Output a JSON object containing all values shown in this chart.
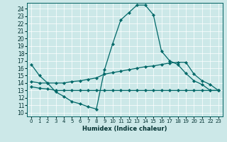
{
  "xlabel": "Humidex (Indice chaleur)",
  "x_ticks": [
    0,
    1,
    2,
    3,
    4,
    5,
    6,
    7,
    8,
    9,
    10,
    11,
    12,
    13,
    14,
    15,
    16,
    17,
    18,
    19,
    20,
    21,
    22,
    23
  ],
  "y_ticks": [
    10,
    11,
    12,
    13,
    14,
    15,
    16,
    17,
    18,
    19,
    20,
    21,
    22,
    23,
    24
  ],
  "xlim": [
    -0.5,
    23.5
  ],
  "ylim": [
    9.5,
    24.8
  ],
  "bg_color": "#cce8e8",
  "line_color": "#006868",
  "line1_x": [
    0,
    1,
    2,
    3,
    4,
    5,
    6,
    7,
    8,
    9,
    10,
    11,
    12,
    13,
    14,
    15,
    16,
    17,
    18,
    19,
    20,
    21,
    22,
    23
  ],
  "line1_y": [
    16.5,
    15.0,
    14.0,
    12.8,
    12.2,
    11.5,
    11.2,
    10.8,
    10.5,
    15.8,
    19.3,
    22.5,
    23.5,
    24.5,
    24.5,
    23.2,
    18.3,
    17.0,
    16.5,
    15.3,
    14.3,
    13.8,
    13.0,
    13.0
  ],
  "line2_x": [
    0,
    1,
    2,
    3,
    4,
    5,
    6,
    7,
    8,
    9,
    10,
    11,
    12,
    13,
    14,
    15,
    16,
    17,
    18,
    19,
    20,
    21,
    22,
    23
  ],
  "line2_y": [
    14.2,
    14.0,
    14.0,
    14.0,
    14.0,
    14.2,
    14.3,
    14.5,
    14.7,
    15.2,
    15.4,
    15.6,
    15.8,
    16.0,
    16.2,
    16.3,
    16.5,
    16.7,
    16.8,
    16.8,
    15.2,
    14.3,
    13.8,
    13.0
  ],
  "line3_x": [
    0,
    1,
    2,
    3,
    4,
    5,
    6,
    7,
    8,
    9,
    10,
    11,
    12,
    13,
    14,
    15,
    16,
    17,
    18,
    19,
    20,
    21,
    22,
    23
  ],
  "line3_y": [
    13.5,
    13.3,
    13.2,
    13.0,
    13.0,
    13.0,
    13.0,
    13.0,
    13.0,
    13.0,
    13.0,
    13.0,
    13.0,
    13.0,
    13.0,
    13.0,
    13.0,
    13.0,
    13.0,
    13.0,
    13.0,
    13.0,
    13.0,
    13.0
  ]
}
